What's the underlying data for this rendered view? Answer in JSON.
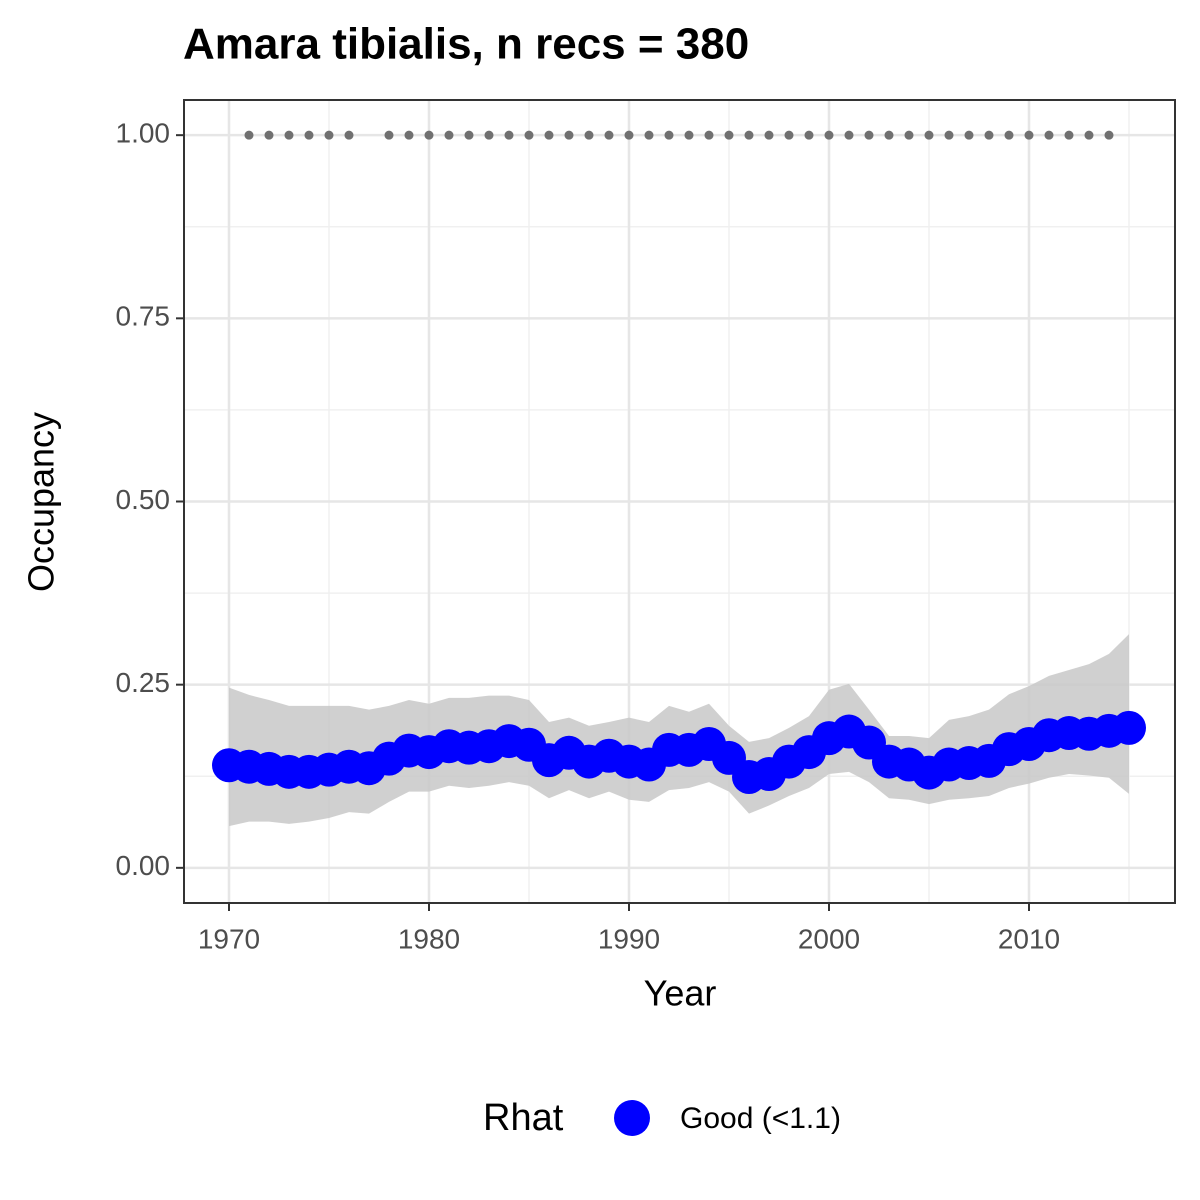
{
  "chart_data": {
    "type": "line",
    "title": "Amara tibialis, n recs = 380",
    "x_label": "Year",
    "y_label": "Occupancy",
    "legend_title": "Rhat",
    "x": [
      1970,
      1971,
      1972,
      1973,
      1974,
      1975,
      1976,
      1977,
      1978,
      1979,
      1980,
      1981,
      1982,
      1983,
      1984,
      1985,
      1986,
      1987,
      1988,
      1989,
      1990,
      1991,
      1992,
      1993,
      1994,
      1995,
      1996,
      1997,
      1998,
      1999,
      2000,
      2001,
      2002,
      2003,
      2004,
      2005,
      2006,
      2007,
      2008,
      2009,
      2010,
      2011,
      2012,
      2013,
      2014,
      2015
    ],
    "series": [
      {
        "name": "Good (<1.1)",
        "color": "#0000ff",
        "values": [
          0.14,
          0.138,
          0.135,
          0.131,
          0.131,
          0.134,
          0.138,
          0.136,
          0.149,
          0.16,
          0.158,
          0.166,
          0.164,
          0.166,
          0.173,
          0.168,
          0.147,
          0.157,
          0.145,
          0.153,
          0.145,
          0.141,
          0.161,
          0.161,
          0.169,
          0.15,
          0.124,
          0.128,
          0.145,
          0.158,
          0.177,
          0.186,
          0.171,
          0.145,
          0.141,
          0.13,
          0.141,
          0.143,
          0.146,
          0.162,
          0.169,
          0.181,
          0.184,
          0.183,
          0.187,
          0.191
        ]
      }
    ],
    "ci_upper": [
      0.246,
      0.236,
      0.229,
      0.221,
      0.221,
      0.221,
      0.221,
      0.216,
      0.221,
      0.229,
      0.224,
      0.232,
      0.232,
      0.235,
      0.235,
      0.229,
      0.199,
      0.205,
      0.194,
      0.199,
      0.205,
      0.199,
      0.221,
      0.213,
      0.224,
      0.194,
      0.172,
      0.177,
      0.191,
      0.207,
      0.243,
      0.251,
      0.216,
      0.18,
      0.18,
      0.177,
      0.202,
      0.207,
      0.216,
      0.237,
      0.248,
      0.262,
      0.27,
      0.278,
      0.292,
      0.319
    ],
    "ci_lower": [
      0.057,
      0.063,
      0.063,
      0.06,
      0.063,
      0.068,
      0.076,
      0.074,
      0.09,
      0.104,
      0.104,
      0.112,
      0.109,
      0.112,
      0.117,
      0.112,
      0.095,
      0.106,
      0.095,
      0.104,
      0.093,
      0.09,
      0.106,
      0.109,
      0.117,
      0.104,
      0.074,
      0.085,
      0.098,
      0.109,
      0.128,
      0.131,
      0.117,
      0.095,
      0.093,
      0.087,
      0.093,
      0.095,
      0.098,
      0.109,
      0.115,
      0.123,
      0.128,
      0.126,
      0.123,
      0.101
    ],
    "ci_color": "#c8c8c8",
    "records": {
      "color": "#707070",
      "x": [
        1971,
        1972,
        1973,
        1974,
        1975,
        1976,
        1978,
        1979,
        1980,
        1981,
        1982,
        1983,
        1984,
        1985,
        1986,
        1987,
        1988,
        1989,
        1990,
        1991,
        1992,
        1993,
        1994,
        1995,
        1996,
        1997,
        1998,
        1999,
        2000,
        2001,
        2002,
        2003,
        2004,
        2005,
        2006,
        2007,
        2008,
        2009,
        2010,
        2011,
        2012,
        2013,
        2014
      ],
      "values": [
        1,
        1,
        1,
        1,
        1,
        1,
        1,
        1,
        1,
        1,
        1,
        1,
        1,
        1,
        1,
        1,
        1,
        1,
        1,
        1,
        1,
        1,
        1,
        1,
        1,
        1,
        1,
        1,
        1,
        1,
        1,
        1,
        1,
        1,
        1,
        1,
        1,
        1,
        1,
        1,
        1,
        1,
        1
      ]
    },
    "xlim": [
      1967.75,
      2017.3
    ],
    "ylim": [
      -0.048,
      1.048
    ],
    "xticks": [
      1970,
      1980,
      1990,
      2000,
      2010
    ],
    "yticks": [
      {
        "value": 0,
        "label": "0.00"
      },
      {
        "value": 0.25,
        "label": "0.25"
      },
      {
        "value": 0.5,
        "label": "0.50"
      },
      {
        "value": 0.75,
        "label": "0.75"
      },
      {
        "value": 1,
        "label": "1.00"
      }
    ],
    "grid": true
  }
}
